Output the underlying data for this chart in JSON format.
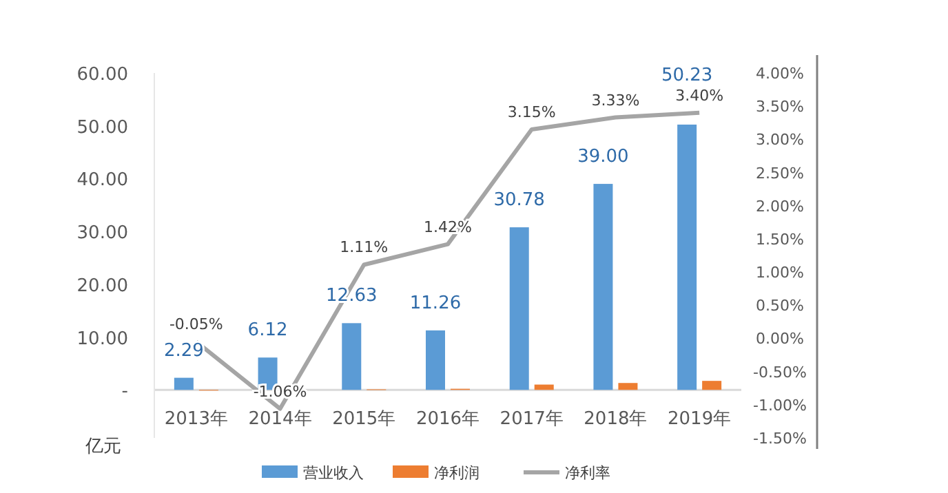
{
  "chart_data": {
    "type": "bar",
    "categories": [
      "2013年",
      "2014年",
      "2015年",
      "2016年",
      "2017年",
      "2018年",
      "2019年"
    ],
    "series": [
      {
        "name": "营业收入",
        "color": "#5b9bd5",
        "values": [
          2.29,
          6.12,
          12.63,
          11.26,
          30.78,
          39.0,
          50.23
        ],
        "value_labels": [
          "2.29",
          "6.12",
          "12.63",
          "11.26",
          "30.78",
          "39.00",
          "50.23"
        ]
      },
      {
        "name": "净利润",
        "color": "#ed7d31",
        "values": [
          0,
          -0.1,
          0.1,
          0.2,
          1.0,
          1.3,
          1.7
        ]
      },
      {
        "name": "净利率",
        "type": "line",
        "axis": "y2",
        "color": "#a5a5a5",
        "values": [
          -0.05,
          -1.06,
          1.11,
          1.42,
          3.15,
          3.33,
          3.4
        ],
        "value_labels": [
          "-0.05%",
          "-1.06%",
          "1.11%",
          "1.42%",
          "3.15%",
          "3.33%",
          "3.40%"
        ]
      }
    ],
    "ylabel": "亿元",
    "ylim": [
      -9.1,
      60
    ],
    "yticks": [
      {
        "value": 0,
        "label": "-"
      },
      {
        "value": 10,
        "label": "10.00"
      },
      {
        "value": 20,
        "label": "20.00"
      },
      {
        "value": 30,
        "label": "30.00"
      },
      {
        "value": 40,
        "label": "40.00"
      },
      {
        "value": 50,
        "label": "50.00"
      },
      {
        "value": 60,
        "label": "60.00"
      }
    ],
    "y2lim": [
      -1.5,
      4
    ],
    "y2ticks": [
      {
        "value": -1.5,
        "label": "-1.50%"
      },
      {
        "value": -1,
        "label": "-1.00%"
      },
      {
        "value": -0.5,
        "label": "-0.50%"
      },
      {
        "value": 0,
        "label": "0.00%"
      },
      {
        "value": 0.5,
        "label": "0.50%"
      },
      {
        "value": 1,
        "label": "1.00%"
      },
      {
        "value": 1.5,
        "label": "1.50%"
      },
      {
        "value": 2,
        "label": "2.00%"
      },
      {
        "value": 2.5,
        "label": "2.50%"
      },
      {
        "value": 3,
        "label": "3.00%"
      },
      {
        "value": 3.5,
        "label": "3.50%"
      },
      {
        "value": 4,
        "label": "4.00%"
      }
    ],
    "legend": "bottom",
    "grid": false,
    "marker": "none",
    "line_style": "solid"
  }
}
